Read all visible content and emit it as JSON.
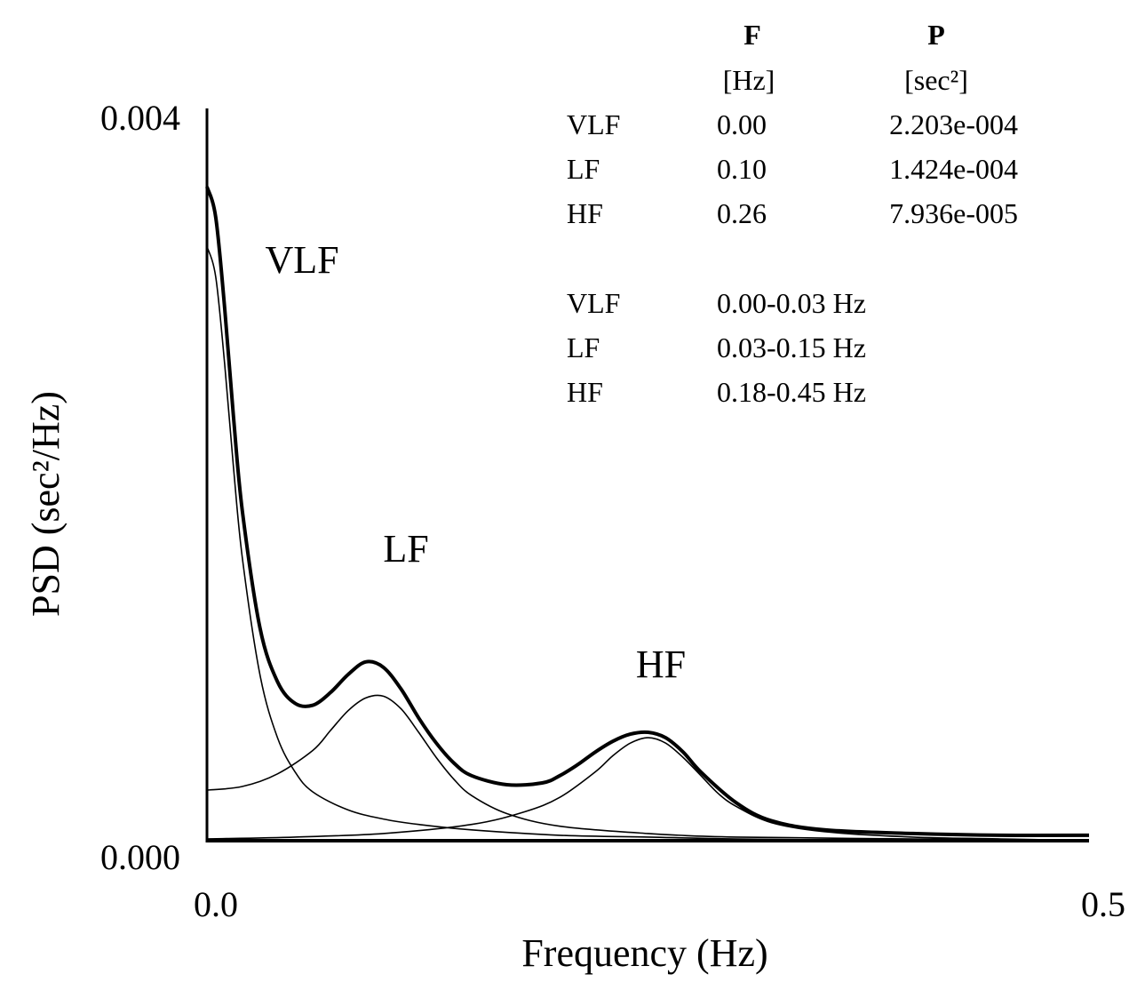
{
  "chart_data": {
    "type": "line",
    "xlabel": "Frequency (Hz)",
    "ylabel": "PSD (sec²/Hz)",
    "xlim": [
      0.0,
      0.5
    ],
    "ylim": [
      0.0,
      0.004
    ],
    "x_ticks": [
      "0.0",
      "0.5"
    ],
    "y_ticks": [
      "0.000",
      "0.004"
    ],
    "grid": false,
    "legend": "none",
    "peak_labels": [
      {
        "text": "VLF",
        "x": 0.033,
        "y": 0.00322
      },
      {
        "text": "LF",
        "x": 0.105,
        "y": 0.00158
      },
      {
        "text": "HF",
        "x": 0.253,
        "y": 0.00098
      }
    ],
    "series": [
      {
        "style": "total",
        "x": [
          0.0,
          0.005,
          0.01,
          0.015,
          0.02,
          0.03,
          0.04,
          0.05,
          0.06,
          0.07,
          0.08,
          0.09,
          0.1,
          0.11,
          0.12,
          0.13,
          0.14,
          0.15,
          0.17,
          0.19,
          0.2,
          0.21,
          0.22,
          0.23,
          0.24,
          0.25,
          0.26,
          0.27,
          0.28,
          0.3,
          0.32,
          0.35,
          0.4,
          0.45,
          0.5
        ],
        "values": [
          0.00362,
          0.00345,
          0.00295,
          0.00235,
          0.00183,
          0.00118,
          0.00088,
          0.00076,
          0.00075,
          0.00082,
          0.00092,
          0.00099,
          0.00096,
          0.00084,
          0.00068,
          0.00054,
          0.00043,
          0.00036,
          0.00031,
          0.00032,
          0.00036,
          0.00042,
          0.00049,
          0.00055,
          0.00059,
          0.0006,
          0.00057,
          0.00049,
          0.00038,
          0.00021,
          0.00011,
          6e-05,
          4e-05,
          3e-05,
          3e-05
        ]
      },
      {
        "style": "component",
        "x": [
          0.0,
          0.005,
          0.01,
          0.015,
          0.02,
          0.03,
          0.04,
          0.05,
          0.06,
          0.08,
          0.1,
          0.12,
          0.15,
          0.2,
          0.25,
          0.3,
          0.4,
          0.5
        ],
        "values": [
          0.00329,
          0.00312,
          0.00264,
          0.00207,
          0.00157,
          0.00092,
          0.00057,
          0.00038,
          0.00027,
          0.00017,
          0.00012,
          9e-05,
          6e-05,
          3e-05,
          2e-05,
          1e-05,
          0.0,
          0.0
        ]
      },
      {
        "style": "component",
        "x": [
          0.0,
          0.02,
          0.04,
          0.06,
          0.07,
          0.08,
          0.09,
          0.1,
          0.11,
          0.12,
          0.13,
          0.14,
          0.15,
          0.17,
          0.2,
          0.25,
          0.3,
          0.4,
          0.5
        ],
        "values": [
          0.00028,
          0.0003,
          0.00037,
          0.0005,
          0.00061,
          0.00072,
          0.00079,
          0.0008,
          0.00073,
          0.0006,
          0.00046,
          0.00034,
          0.00025,
          0.00015,
          8e-05,
          4e-05,
          2e-05,
          1e-05,
          0.0
        ]
      },
      {
        "style": "component",
        "x": [
          0.0,
          0.05,
          0.1,
          0.15,
          0.18,
          0.2,
          0.22,
          0.23,
          0.24,
          0.25,
          0.26,
          0.27,
          0.28,
          0.29,
          0.3,
          0.32,
          0.35,
          0.4,
          0.45,
          0.5
        ],
        "values": [
          1e-05,
          2e-05,
          4e-05,
          9e-05,
          0.00016,
          0.00024,
          0.00038,
          0.00047,
          0.00054,
          0.00057,
          0.00054,
          0.00046,
          0.00036,
          0.00026,
          0.00019,
          0.0001,
          5e-05,
          2e-05,
          1e-05,
          0.0
        ]
      }
    ]
  },
  "table": {
    "header": {
      "f": "F",
      "p": "P",
      "f_unit": "[Hz]",
      "p_unit": "[sec²]"
    },
    "rows": [
      {
        "band": "VLF",
        "f": "0.00",
        "p": "2.203e-004"
      },
      {
        "band": "LF",
        "f": "0.10",
        "p": "1.424e-004"
      },
      {
        "band": "HF",
        "f": "0.26",
        "p": "7.936e-005"
      }
    ],
    "ranges": [
      {
        "band": "VLF",
        "range": "0.00-0.03 Hz"
      },
      {
        "band": "LF",
        "range": "0.03-0.15 Hz"
      },
      {
        "band": "HF",
        "range": "0.18-0.45 Hz"
      }
    ]
  }
}
